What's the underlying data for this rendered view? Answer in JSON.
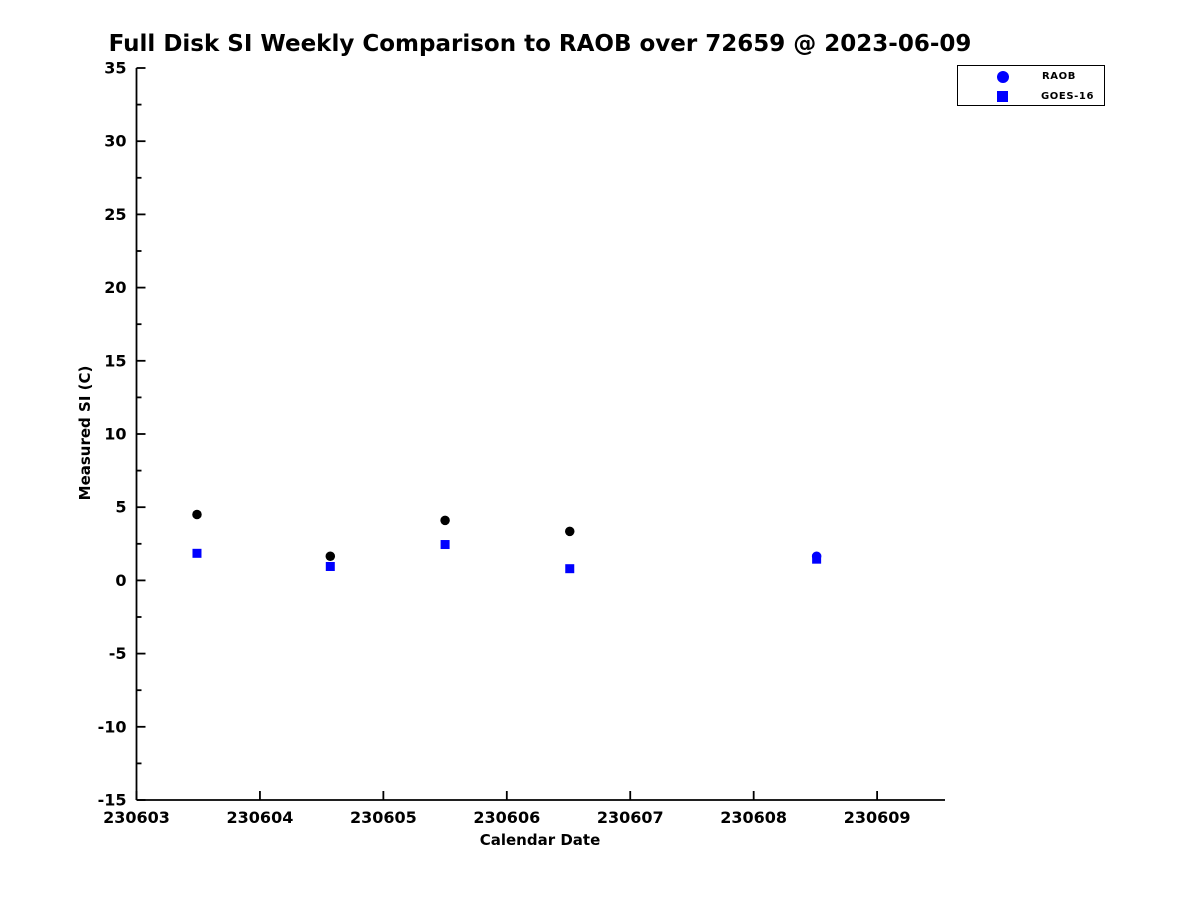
{
  "figure": {
    "background": "#ffffff"
  },
  "chart_data": {
    "type": "scatter",
    "title": "Full Disk SI Weekly Comparison to RAOB over 72659 @ 2023-06-09",
    "xlabel": "Calendar Date",
    "ylabel": "Measured SI (C)",
    "xlim": [
      230603,
      230609.55
    ],
    "ylim": [
      -15,
      35
    ],
    "x_ticks": [
      230603,
      230604,
      230605,
      230606,
      230607,
      230608,
      230609
    ],
    "y_ticks": [
      -15,
      -10,
      -5,
      0,
      5,
      10,
      15,
      20,
      25,
      30,
      35
    ],
    "y_minor_step": 2.5,
    "grid": false,
    "axis_color": "#000000",
    "legend": {
      "position": "top-right",
      "entries": [
        {
          "label": "RAOB",
          "marker": "circle",
          "color": "#0000ff"
        },
        {
          "label": "GOES-16",
          "marker": "square",
          "color": "#0000ff"
        }
      ]
    },
    "series": [
      {
        "name": "RAOB",
        "marker": "circle",
        "marker_size": 9.5,
        "x": [
          230603.49,
          230604.57,
          230605.5,
          230606.51,
          230608.51
        ],
        "y": [
          4.5,
          1.65,
          4.1,
          3.35,
          1.65
        ],
        "colors": [
          "#000000",
          "#000000",
          "#000000",
          "#000000",
          "#0000ff"
        ]
      },
      {
        "name": "GOES-16",
        "marker": "square",
        "marker_size": 9,
        "x": [
          230603.49,
          230604.57,
          230605.5,
          230606.51,
          230608.51
        ],
        "y": [
          1.85,
          0.95,
          2.45,
          0.8,
          1.45
        ],
        "colors": [
          "#0000ff",
          "#0000ff",
          "#0000ff",
          "#0000ff",
          "#0000ff"
        ]
      }
    ]
  }
}
